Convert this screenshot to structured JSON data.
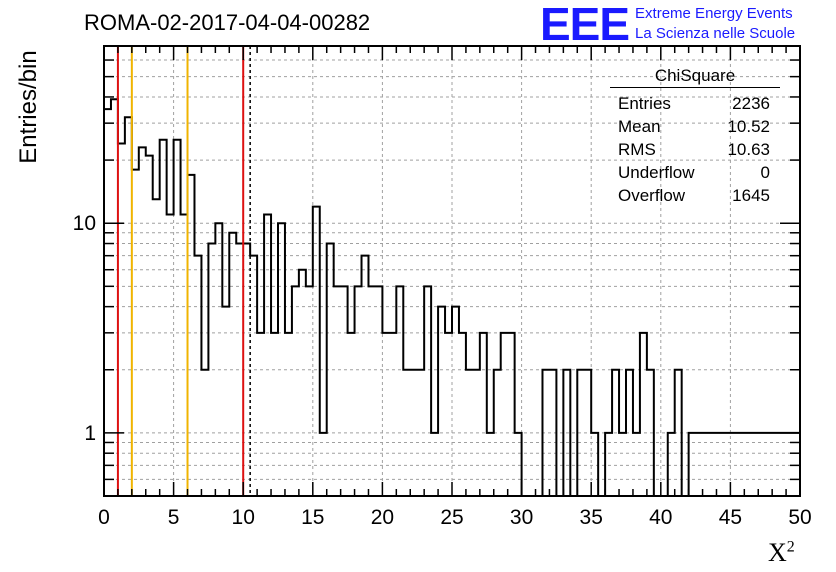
{
  "title": "ROMA-02-2017-04-04-00282",
  "logo": {
    "mark": "EEE",
    "line1": "Extreme Energy Events",
    "line2": "La Scienza nelle Scuole"
  },
  "stats": {
    "name": "ChiSquare",
    "rows": [
      {
        "label": "Entries",
        "value": "2236"
      },
      {
        "label": "Mean",
        "value": "10.52"
      },
      {
        "label": "RMS",
        "value": "10.63"
      },
      {
        "label": "Underflow",
        "value": "0"
      },
      {
        "label": "Overflow",
        "value": "1645"
      }
    ]
  },
  "colors": {
    "red_line": "#dd1111",
    "yellow_line": "#f0b400",
    "grid": "#a0a0a0"
  },
  "chart_data": {
    "type": "histogram",
    "xlabel": "X²",
    "ylabel": "Entries/bin",
    "xlim": [
      0,
      50
    ],
    "ylim": [
      0.5,
      70
    ],
    "yscale": "log",
    "grid": true,
    "x_ticks": [
      "0",
      "5",
      "10",
      "15",
      "20",
      "25",
      "30",
      "35",
      "40",
      "45",
      "50"
    ],
    "y_ticks": [
      "1",
      "10"
    ],
    "bin_width": 0.5,
    "values": [
      35,
      39,
      24,
      32,
      18,
      23,
      21,
      13,
      25,
      11,
      25,
      11,
      17,
      7,
      2,
      8,
      10,
      4,
      9,
      8,
      8,
      7,
      3,
      11,
      3,
      10,
      3,
      5,
      6,
      5,
      12,
      1,
      8,
      5,
      5,
      3,
      5,
      7,
      5,
      5,
      3,
      3,
      5,
      2,
      2,
      2,
      5,
      1,
      4,
      3,
      4,
      3,
      2,
      2,
      3,
      1,
      2,
      3,
      3,
      1,
      0,
      0,
      0,
      2,
      2,
      0,
      2,
      0,
      2,
      2,
      1,
      0,
      1,
      2,
      1,
      2,
      1,
      3,
      2,
      0,
      0,
      1,
      2,
      0,
      1
    ]
  },
  "vertical_lines": [
    {
      "x": 1,
      "style": "red"
    },
    {
      "x": 2,
      "style": "yellow"
    },
    {
      "x": 6,
      "style": "yellow"
    },
    {
      "x": 10,
      "style": "red"
    },
    {
      "x": 10.5,
      "style": "dotted"
    }
  ]
}
